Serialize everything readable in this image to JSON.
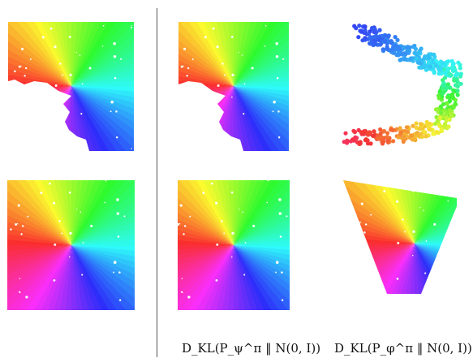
{
  "captions": {
    "psi": "D_KL(P_ψ^π ‖ N(0, I))",
    "phi": "D_KL(P_φ^π ‖ N(0, I))"
  },
  "colors": {
    "divider": "#555555",
    "text": "#111111"
  },
  "panels": [
    {
      "id": "source-partial",
      "row": 1,
      "col": 1,
      "shape": "partial-square"
    },
    {
      "id": "psi-partial",
      "row": 1,
      "col": 2,
      "shape": "partial-square"
    },
    {
      "id": "phi-partial",
      "row": 1,
      "col": 3,
      "shape": "curved-arc-scatter"
    },
    {
      "id": "source-full",
      "row": 2,
      "col": 1,
      "shape": "square"
    },
    {
      "id": "psi-full",
      "row": 2,
      "col": 2,
      "shape": "square"
    },
    {
      "id": "phi-full",
      "row": 2,
      "col": 3,
      "shape": "parallelogram"
    }
  ]
}
